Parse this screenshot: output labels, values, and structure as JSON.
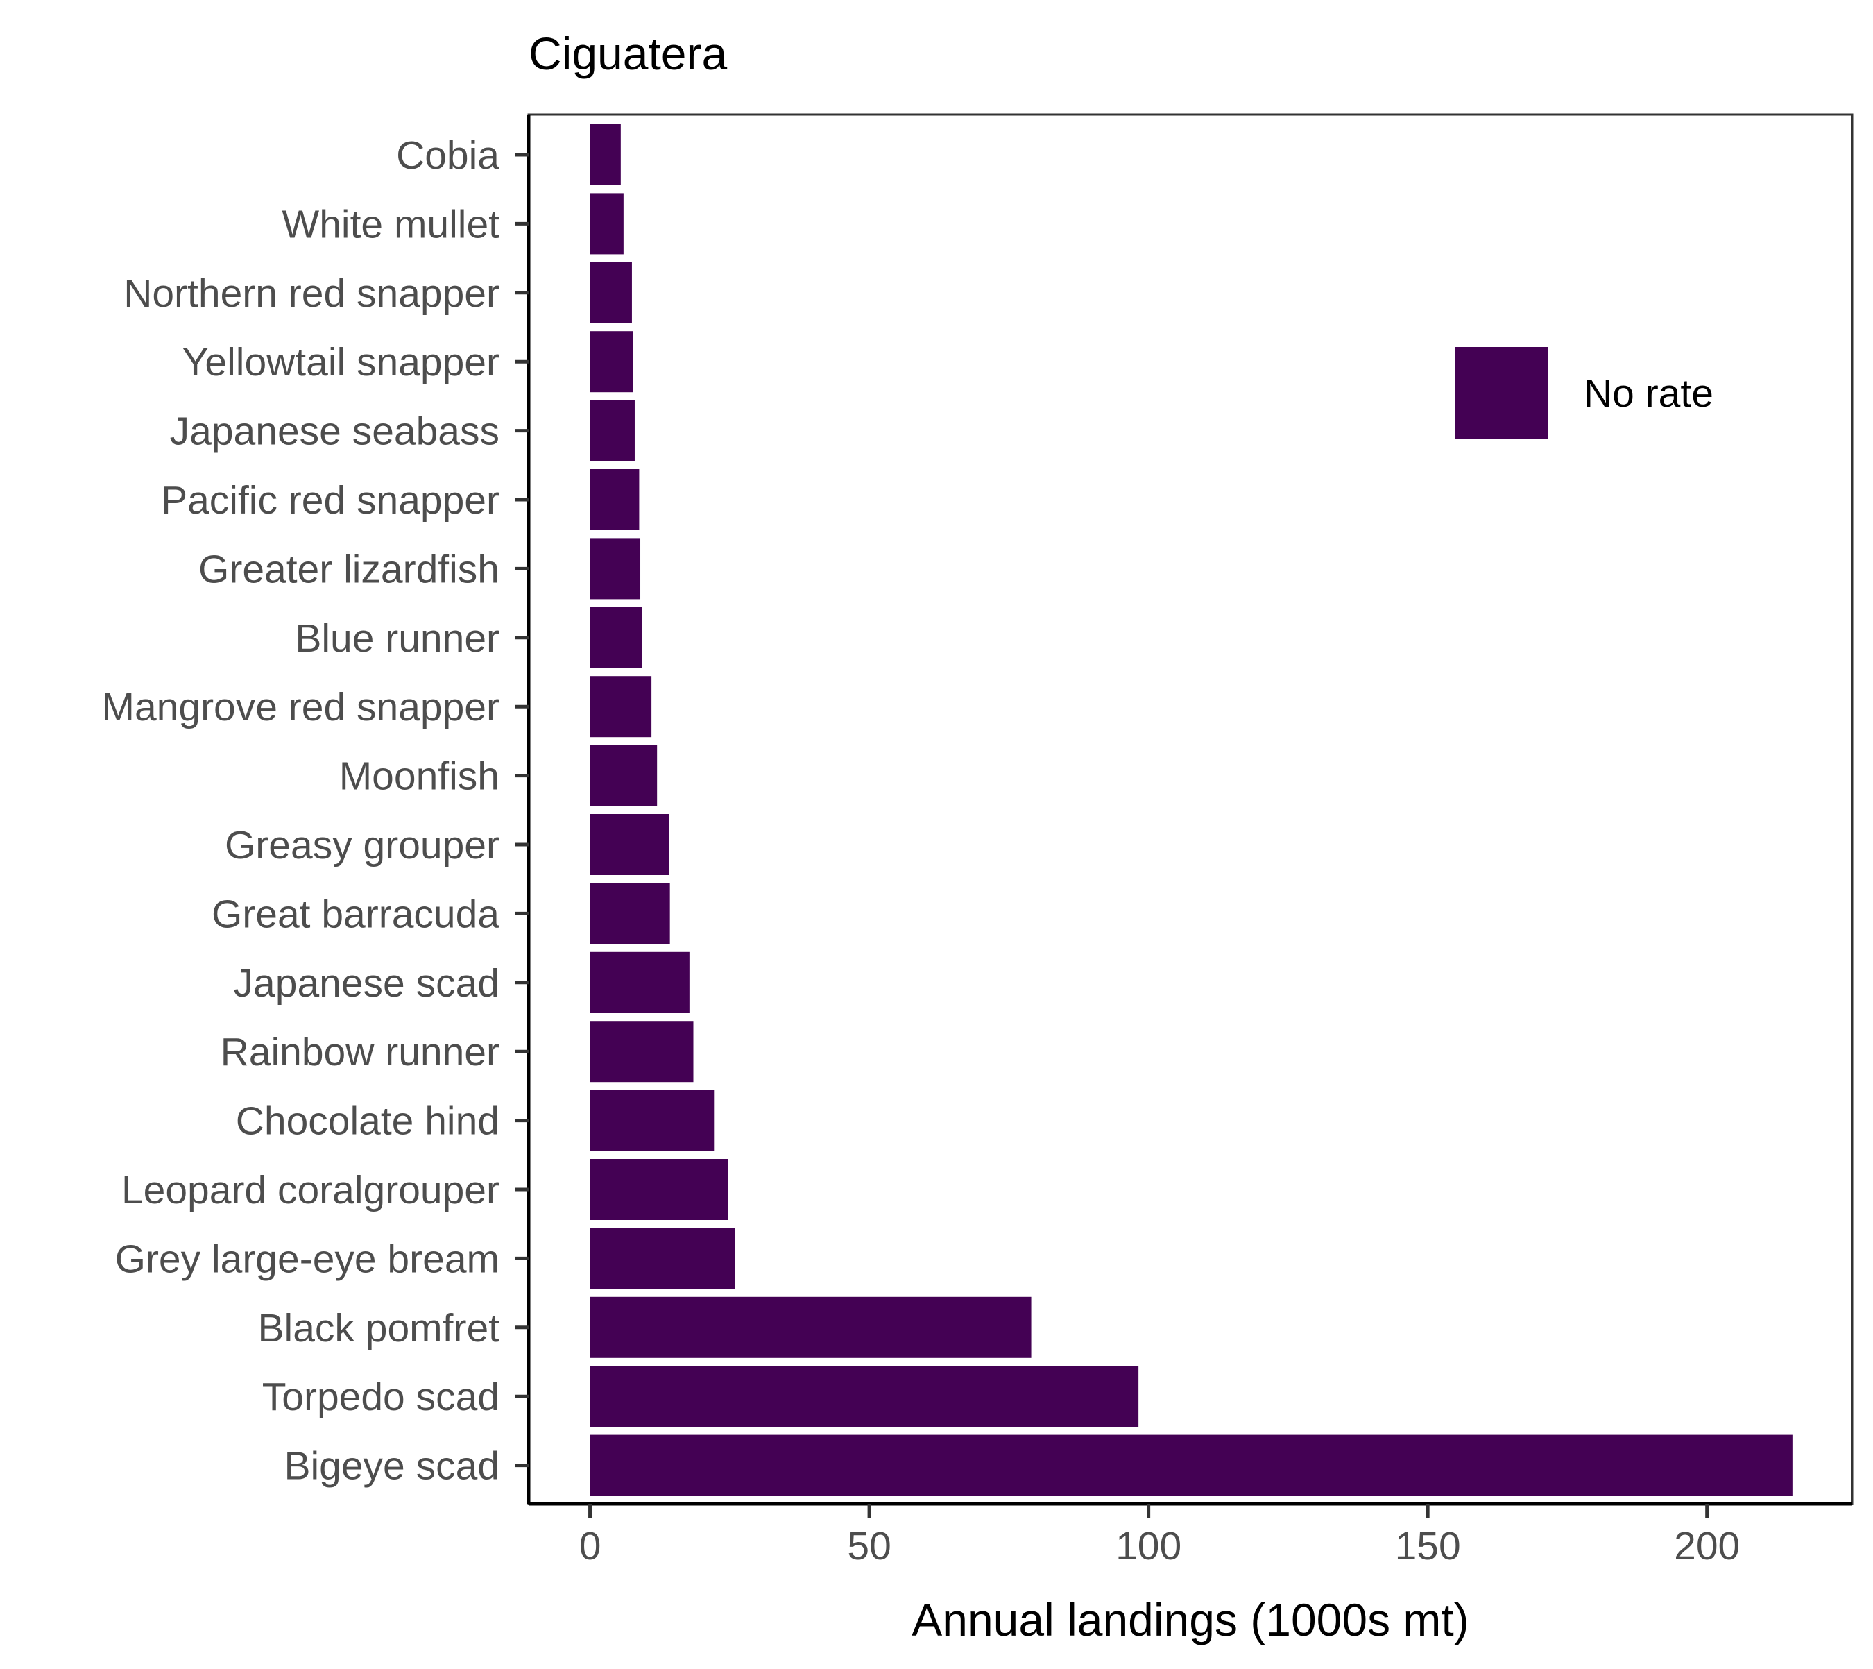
{
  "chart_data": {
    "type": "bar",
    "orientation": "horizontal",
    "title": "Ciguatera",
    "xlabel": "Annual landings (1000s mt)",
    "ylabel": "",
    "xlim": [
      -11,
      226
    ],
    "xticks": [
      0,
      50,
      100,
      150,
      200
    ],
    "grid": false,
    "legend": {
      "position": "top-right",
      "entries": [
        "No rate"
      ]
    },
    "categories": [
      "Cobia",
      "White mullet",
      "Northern red snapper",
      "Yellowtail snapper",
      "Japanese seabass",
      "Pacific red snapper",
      "Greater lizardfish",
      "Blue runner",
      "Mangrove red snapper",
      "Moonfish",
      "Greasy grouper",
      "Great barracuda",
      "Japanese scad",
      "Rainbow runner",
      "Chocolate hind",
      "Leopard coralgrouper",
      "Grey large-eye bream",
      "Black pomfret",
      "Torpedo scad",
      "Bigeye scad"
    ],
    "series": [
      {
        "name": "No rate",
        "color": "#440154",
        "values": [
          5.5,
          6,
          7.5,
          7.7,
          8,
          8.8,
          9,
          9.3,
          11,
          12,
          14.2,
          14.3,
          17.8,
          18.5,
          22.2,
          24.7,
          26,
          79,
          98.2,
          215.3
        ]
      }
    ]
  }
}
